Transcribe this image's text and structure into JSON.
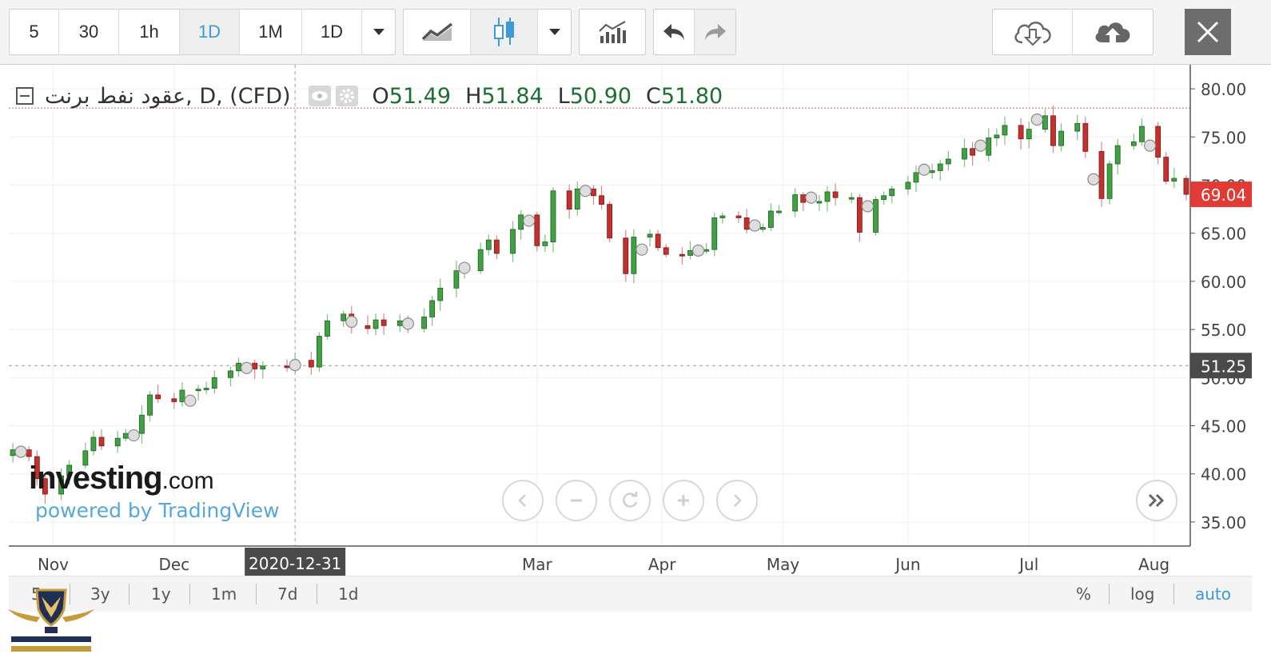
{
  "toolbar": {
    "intervals": [
      "5",
      "30",
      "1h",
      "1D",
      "1M",
      "1D"
    ],
    "active_interval": "1D",
    "icons": [
      "dropdown-arrow-icon",
      "line-chart-icon",
      "candlestick-icon",
      "chevron-down-icon",
      "indicators-icon",
      "undo-icon",
      "redo-icon",
      "cloud-download-icon",
      "cloud-upload-icon",
      "close-icon"
    ]
  },
  "legend": {
    "symbol": "عقود نفط برنت, D, (CFD)",
    "open_label": "O",
    "open": "51.49",
    "high_label": "H",
    "high": "51.84",
    "low_label": "L",
    "low": "50.90",
    "close_label": "C",
    "close": "51.80"
  },
  "watermark": {
    "brand": "investing",
    "suffix": ".com",
    "powered": "powered by TradingView"
  },
  "bottom": {
    "ranges": [
      "5",
      "3y",
      "1y",
      "1m",
      "7d",
      "1d"
    ],
    "options": [
      "%",
      "log",
      "auto"
    ],
    "active_option": "auto"
  },
  "colors": {
    "up": "#3fa142",
    "down": "#c3302e",
    "price_badge": "#e23a35",
    "crosshair_badge": "#4a4a4a",
    "accent": "#3c9bd6"
  },
  "chart_data": {
    "type": "candlestick",
    "yaxis": {
      "ticks": [
        "35.00",
        "40.00",
        "45.00",
        "50.00",
        "55.00",
        "60.00",
        "65.00",
        "70.00",
        "75.00",
        "80.00"
      ],
      "ylim": [
        32.5,
        82.5
      ]
    },
    "xaxis": {
      "labels": [
        {
          "label": "Nov",
          "date": "2020-11-01"
        },
        {
          "label": "Dec",
          "date": "2020-12-01"
        },
        {
          "label": "Mar",
          "date": "2021-03-01"
        },
        {
          "label": "Apr",
          "date": "2021-04-01"
        },
        {
          "label": "May",
          "date": "2021-05-01"
        },
        {
          "label": "Jun",
          "date": "2021-06-01"
        },
        {
          "label": "Jul",
          "date": "2021-07-01"
        },
        {
          "label": "Aug",
          "date": "2021-08-01"
        }
      ]
    },
    "crosshair": {
      "date": "2020-12-31",
      "price": "51.25"
    },
    "last_price": "69.04",
    "high_line": 78.0,
    "closes": [
      [
        "2020-10-22",
        42.5
      ],
      [
        "2020-10-26",
        41.8
      ],
      [
        "2020-10-28",
        39.5
      ],
      [
        "2020-10-30",
        37.9
      ],
      [
        "2020-11-03",
        39.8
      ],
      [
        "2020-11-05",
        40.9
      ],
      [
        "2020-11-09",
        42.4
      ],
      [
        "2020-11-11",
        43.8
      ],
      [
        "2020-11-13",
        42.9
      ],
      [
        "2020-11-17",
        43.7
      ],
      [
        "2020-11-19",
        44.2
      ],
      [
        "2020-11-23",
        46.1
      ],
      [
        "2020-11-25",
        48.2
      ],
      [
        "2020-11-27",
        47.8
      ],
      [
        "2020-12-01",
        47.5
      ],
      [
        "2020-12-03",
        48.7
      ],
      [
        "2020-12-07",
        48.8
      ],
      [
        "2020-12-09",
        48.9
      ],
      [
        "2020-12-11",
        50.0
      ],
      [
        "2020-12-15",
        50.7
      ],
      [
        "2020-12-17",
        51.5
      ],
      [
        "2020-12-21",
        50.9
      ],
      [
        "2020-12-23",
        51.2
      ],
      [
        "2020-12-29",
        51.1
      ],
      [
        "2020-12-31",
        51.8
      ],
      [
        "2021-01-04",
        51.1
      ],
      [
        "2021-01-06",
        54.3
      ],
      [
        "2021-01-08",
        55.9
      ],
      [
        "2021-01-12",
        56.6
      ],
      [
        "2021-01-14",
        55.4
      ],
      [
        "2021-01-18",
        55.1
      ],
      [
        "2021-01-20",
        56.0
      ],
      [
        "2021-01-22",
        55.4
      ],
      [
        "2021-01-26",
        55.9
      ],
      [
        "2021-01-28",
        55.1
      ],
      [
        "2021-02-01",
        56.3
      ],
      [
        "2021-02-03",
        58.0
      ],
      [
        "2021-02-05",
        59.3
      ],
      [
        "2021-02-09",
        61.1
      ],
      [
        "2021-02-11",
        61.1
      ],
      [
        "2021-02-15",
        63.3
      ],
      [
        "2021-02-17",
        64.3
      ],
      [
        "2021-02-19",
        62.9
      ],
      [
        "2021-02-23",
        65.4
      ],
      [
        "2021-02-25",
        66.9
      ],
      [
        "2021-03-01",
        63.7
      ],
      [
        "2021-03-03",
        64.1
      ],
      [
        "2021-03-05",
        69.4
      ],
      [
        "2021-03-09",
        67.5
      ],
      [
        "2021-03-11",
        69.6
      ],
      [
        "2021-03-15",
        68.9
      ],
      [
        "2021-03-17",
        68.0
      ],
      [
        "2021-03-19",
        64.5
      ],
      [
        "2021-03-23",
        60.8
      ],
      [
        "2021-03-25",
        64.6
      ],
      [
        "2021-03-29",
        64.9
      ],
      [
        "2021-03-31",
        63.5
      ],
      [
        "2021-04-02",
        62.8
      ],
      [
        "2021-04-06",
        62.7
      ],
      [
        "2021-04-08",
        63.2
      ],
      [
        "2021-04-12",
        63.3
      ],
      [
        "2021-04-14",
        66.6
      ],
      [
        "2021-04-16",
        66.8
      ],
      [
        "2021-04-20",
        66.6
      ],
      [
        "2021-04-22",
        65.4
      ],
      [
        "2021-04-26",
        65.6
      ],
      [
        "2021-04-28",
        67.3
      ],
      [
        "2021-04-30",
        67.3
      ],
      [
        "2021-05-04",
        69.0
      ],
      [
        "2021-05-06",
        68.2
      ],
      [
        "2021-05-10",
        68.3
      ],
      [
        "2021-05-12",
        69.3
      ],
      [
        "2021-05-14",
        68.7
      ],
      [
        "2021-05-18",
        68.7
      ],
      [
        "2021-05-20",
        65.1
      ],
      [
        "2021-05-24",
        68.5
      ],
      [
        "2021-05-26",
        68.9
      ],
      [
        "2021-05-28",
        69.6
      ],
      [
        "2021-06-01",
        70.3
      ],
      [
        "2021-06-03",
        71.3
      ],
      [
        "2021-06-07",
        71.5
      ],
      [
        "2021-06-09",
        72.2
      ],
      [
        "2021-06-11",
        72.7
      ],
      [
        "2021-06-15",
        73.8
      ],
      [
        "2021-06-17",
        73.1
      ],
      [
        "2021-06-21",
        74.9
      ],
      [
        "2021-06-23",
        75.2
      ],
      [
        "2021-06-25",
        76.2
      ],
      [
        "2021-06-29",
        74.8
      ],
      [
        "2021-07-01",
        75.8
      ],
      [
        "2021-07-05",
        77.2
      ],
      [
        "2021-07-07",
        74.1
      ],
      [
        "2021-07-09",
        75.6
      ],
      [
        "2021-07-13",
        76.4
      ],
      [
        "2021-07-15",
        73.5
      ],
      [
        "2021-07-19",
        68.6
      ],
      [
        "2021-07-21",
        72.2
      ],
      [
        "2021-07-23",
        74.1
      ],
      [
        "2021-07-27",
        74.5
      ],
      [
        "2021-07-29",
        76.1
      ],
      [
        "2021-08-02",
        72.9
      ],
      [
        "2021-08-04",
        70.4
      ],
      [
        "2021-08-06",
        70.7
      ],
      [
        "2021-08-09",
        69.04
      ]
    ],
    "markers": [
      [
        "2020-10-24",
        42.3
      ],
      [
        "2020-11-21",
        44.0
      ],
      [
        "2020-12-05",
        47.6
      ],
      [
        "2020-12-19",
        51.0
      ],
      [
        "2020-12-31",
        51.3
      ],
      [
        "2021-01-14",
        55.8
      ],
      [
        "2021-01-28",
        55.6
      ],
      [
        "2021-02-11",
        61.4
      ],
      [
        "2021-02-27",
        66.3
      ],
      [
        "2021-03-13",
        69.4
      ],
      [
        "2021-03-27",
        63.3
      ],
      [
        "2021-04-10",
        63.2
      ],
      [
        "2021-04-24",
        65.8
      ],
      [
        "2021-05-08",
        68.7
      ],
      [
        "2021-05-22",
        67.8
      ],
      [
        "2021-06-05",
        71.6
      ],
      [
        "2021-06-19",
        74.1
      ],
      [
        "2021-07-03",
        76.8
      ],
      [
        "2021-07-17",
        70.6
      ],
      [
        "2021-07-31",
        74.1
      ]
    ]
  }
}
